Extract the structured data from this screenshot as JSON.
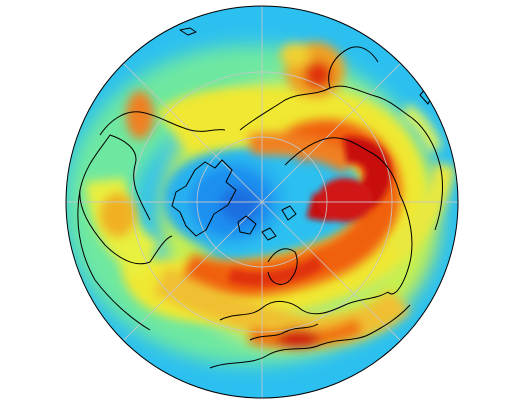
{
  "map": {
    "projection": "north-polar-stereographic",
    "field": "heatmap",
    "colors": {
      "low": "#1f5fe0",
      "mid_low": "#2cc0f0",
      "mid": "#33e0c0",
      "mid_high": "#f0e830",
      "high": "#f06010",
      "peak": "#c81010",
      "coastline": "#000000",
      "graticule": "#c8c8c8"
    }
  }
}
